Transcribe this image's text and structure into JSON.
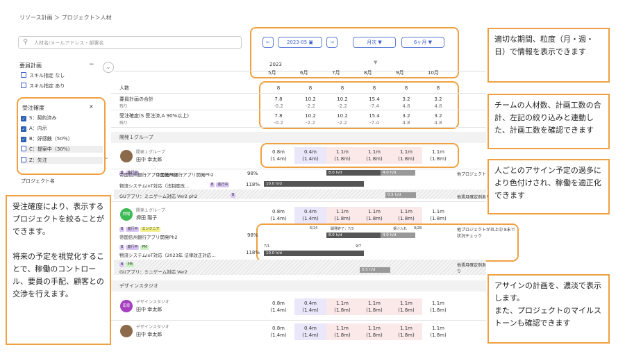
{
  "breadcrumb": "リソース計画 ＞ プロジェクト＞人材",
  "search": {
    "placeholder": "人材名/メールアドレス・部署名"
  },
  "nav": {
    "prev": "←",
    "period": "2023-05",
    "next": "→",
    "granularity": "月次",
    "span": "6ヶ月"
  },
  "timeline": {
    "year": "2023",
    "months": [
      "5月",
      "6月",
      "7月",
      "8月",
      "9月",
      "10月"
    ]
  },
  "sidebar": {
    "resource_plan_title": "要員計画",
    "resource_options": [
      "スキル指定 なし",
      "スキル指定 あり"
    ],
    "order_title": "受注確度",
    "order_options": [
      "S：契約済み",
      "A：内示",
      "B：好感触（50％）",
      "C：提案中（30％）",
      "Z：失注"
    ],
    "project_title": "プロジェクト名"
  },
  "summary": {
    "headcount_label": "人数",
    "headcount": [
      "8",
      "8",
      "8",
      "8",
      "8",
      "8"
    ],
    "plan_label": "要員計画の合計",
    "plan_sub": "残り",
    "plan": [
      "7.8",
      "10.2",
      "10.2",
      "15.4",
      "3.2",
      "3.2"
    ],
    "plan_rem": [
      "-0.2",
      "-2.2",
      "-2.2",
      "-7.4",
      "4.8",
      "4.8"
    ],
    "order_label": "受注確度(S 受注済,A 90%以上)",
    "order_sub": "残り",
    "order": [
      "7.8",
      "10.2",
      "10.2",
      "15.4",
      "3.2",
      "3.2"
    ],
    "order_rem": [
      "-0.2",
      "-2.2",
      "-2.2",
      "-7.4",
      "4.8",
      "4.8"
    ]
  },
  "groups": [
    {
      "name": "開発１グループ"
    },
    {
      "name": "デザインスタジオ"
    }
  ],
  "people": [
    {
      "dept": "開発１グループ",
      "name": "田中 幸太郎",
      "avatar": "",
      "vals": [
        "0.8m",
        "0.4m",
        "1.1m",
        "1.1m",
        "1.1m",
        "1.1m"
      ],
      "subs": [
        "(1.4m)",
        "(1.4m)",
        "(1.8m)",
        "(1.8m)",
        "(1.8m)",
        "(1.8m)"
      ]
    },
    {
      "dept": "開発１グループ",
      "name": "押田 陽子",
      "avatar": "押陽",
      "vals": [
        "0.8m",
        "0.4m",
        "1.1m",
        "1.1m",
        "1.1m",
        "1.1m"
      ],
      "subs": [
        "(1.4m)",
        "(1.4m)",
        "(1.8m)",
        "(1.8m)",
        "(1.8m)",
        "(1.8m)"
      ]
    },
    {
      "dept": "デザインスタジオ",
      "name": "田中 幸太郎",
      "avatar": "田幸",
      "vals": [
        "0.8m",
        "0.4m",
        "1.1m",
        "1.1m",
        "1.1m",
        "1.1m"
      ],
      "subs": [
        "(1.4m)",
        "(1.4m)",
        "(1.8m)",
        "(1.8m)",
        "(1.8m)",
        "(1.8m)"
      ]
    },
    {
      "dept": "デザインスタジオ",
      "name": "田中 幸太郎",
      "avatar": "",
      "vals": [
        "0.8m",
        "0.4m",
        "1.1m",
        "1.1m",
        "1.1m",
        "1.1m"
      ],
      "subs": [
        "(1.4m)",
        "(1.4m)",
        "(1.8m)",
        "(1.8m)",
        "(1.8m)",
        "(1.8m)"
      ]
    }
  ],
  "projects1": [
    {
      "tag1": "B",
      "tag2": "進行中",
      "name": "帝国信州銀行アプリ開発Ph2",
      "pct": "98%",
      "bar1": "8.0 h/d",
      "bar2": "4.0 h/d",
      "note": "他プロジェクト"
    },
    {
      "tag1": "B",
      "tag2": "進行中",
      "name": "物流システムIoT対応（法制度改...",
      "pct": "118%",
      "bar1": "10.0 h/d"
    },
    {
      "name": "GUアプリ：ミニゲーム対応 Ver2 ph2",
      "tag1": "B",
      "bar1": "0.5 h/d",
      "note": "他週月確定例あり"
    }
  ],
  "projects2": [
    {
      "tag1": "B",
      "tag2": "進行中",
      "tag3": "エンジニア",
      "name": "帝国信州銀行アプリ開発Ph2",
      "pct": "98%",
      "m1": "6/14",
      "m2": "開発終了：7/3",
      "m3": "受け入れ",
      "m4": "9/28",
      "bar1": "8.0 h/d",
      "bar2": "4.0 h/d",
      "note": "他プロジェクトが炎上中 8末で状況チェック"
    },
    {
      "tag1": "B",
      "tag2": "進行中",
      "tag3": "PM",
      "name": "物流システムIoT対応（2023年 法律改正対応...",
      "pct": "118%",
      "m1": "7/1",
      "m2": "9/7",
      "bar1": "10.0 h/d"
    },
    {
      "tag1": "B",
      "tag3": "PM",
      "name": "GUアプリ：ミニゲーム対応 Ver2",
      "bar1": "0.5 h/d",
      "note": "他週月確定例あり"
    }
  ],
  "notes": {
    "n1": "適切な期間、粒度（月・週・日）で情報を表示できます",
    "n2": "チームの人材数、計画工数の合計、左記の絞り込みと連動した、計画工数を確認できます",
    "n3": "人ごとのアサイン予定の過多により色付けされ、稼働を適正化できます",
    "n4": "受注確度により、表示するプロジェクトを絞ることができます。\n\n将来の予定を視覚化することで、稼働のコントロール、要員の手配、顧客との交渉を行えます。",
    "n5": "アサインの計画を、濃淡で表示します。\nまた、プロジェクトのマイルストーンも確認できます"
  },
  "colors": {
    "accent": "#f0a040",
    "primary": "#3a5bc7",
    "overload": "#fbe9ea",
    "assigned": "#ebe7fb"
  }
}
